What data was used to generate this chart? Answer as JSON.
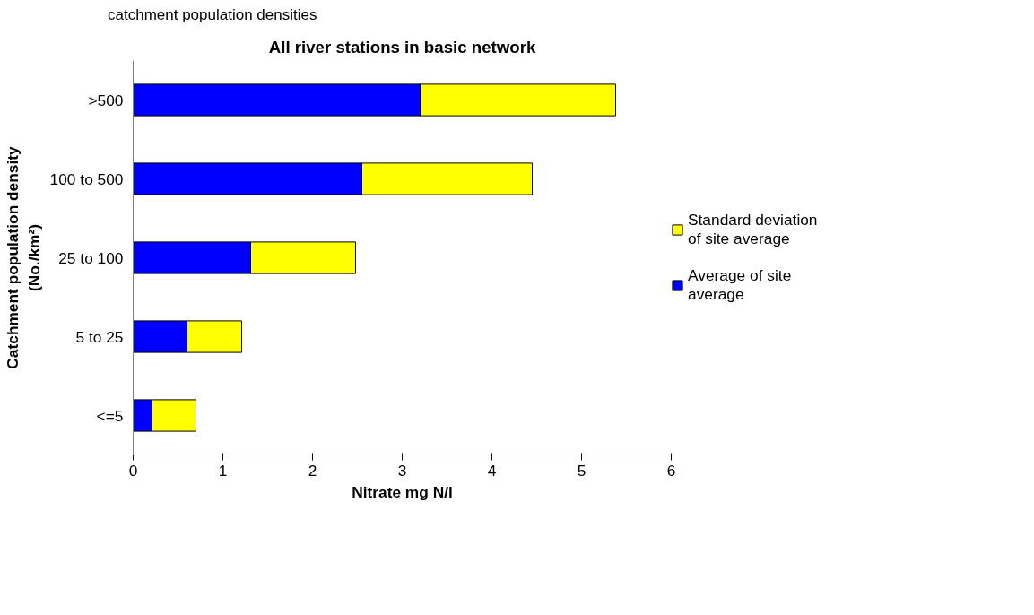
{
  "chart_data": {
    "type": "bar",
    "orientation": "horizontal",
    "stacked": true,
    "title": "All river stations in basic network",
    "annotations": [
      "catchment population densities"
    ],
    "xlabel": "Nitrate mg N/l",
    "ylabel": "Catchment population density\n(No./km²)",
    "categories": [
      ">500",
      "100 to 500",
      "25 to 100",
      "5 to 25",
      "<=5"
    ],
    "series": [
      {
        "name": "Average of site average",
        "color": "#0000ff",
        "values": [
          3.2,
          2.55,
          1.31,
          0.6,
          0.21
        ]
      },
      {
        "name": "Standard deviation of site average",
        "color": "#ffff00",
        "values": [
          2.18,
          1.9,
          1.17,
          0.61,
          0.49
        ]
      }
    ],
    "xlim": [
      0,
      6
    ],
    "xticks": [
      0,
      1,
      2,
      3,
      4,
      5,
      6
    ],
    "grid": false,
    "legend": "right"
  }
}
